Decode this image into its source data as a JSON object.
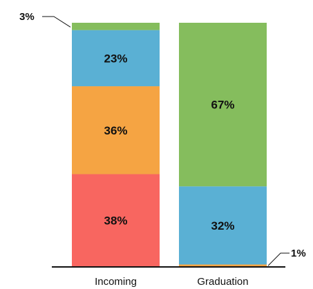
{
  "chart_data": {
    "type": "bar",
    "stacked": true,
    "categories": [
      "Incoming",
      "Graduation"
    ],
    "series": [
      {
        "values": [
          38,
          0
        ],
        "color": "#f86660"
      },
      {
        "values": [
          36,
          1
        ],
        "color": "#f5a443"
      },
      {
        "values": [
          23,
          32
        ],
        "color": "#5ab0d4"
      },
      {
        "values": [
          3,
          67
        ],
        "color": "#85bd5d"
      }
    ],
    "data_labels": [
      [
        "38%",
        ""
      ],
      [
        "36%",
        "1%"
      ],
      [
        "23%",
        "32%"
      ],
      [
        "3%",
        "67%"
      ]
    ],
    "ylim": [
      0,
      100
    ],
    "grid": false,
    "legend": "none"
  }
}
